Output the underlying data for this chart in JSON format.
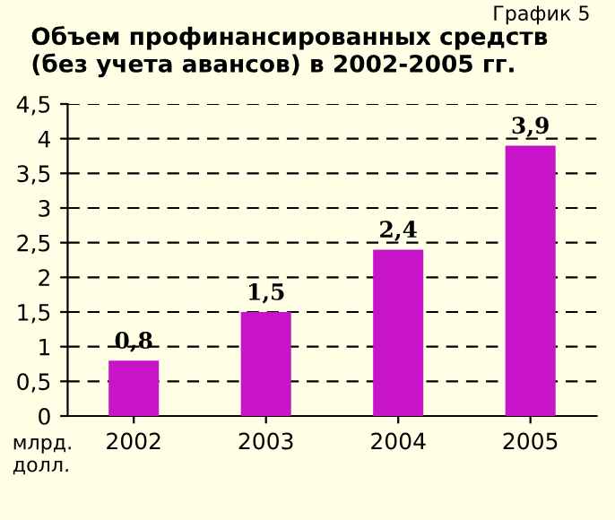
{
  "chart_data": {
    "type": "bar",
    "title": "Объем профинансированных средств\n(без учета авансов) в 2002-2005 гг.",
    "annotations": [
      "График 5",
      "млрд.\nдолл."
    ],
    "categories": [
      "2002",
      "2003",
      "2004",
      "2005"
    ],
    "values": [
      0.8,
      1.5,
      2.4,
      3.9
    ],
    "value_labels": [
      "0,8",
      "1,5",
      "2,4",
      "3,9"
    ],
    "color": "#c814c8",
    "ylim": [
      0,
      4.5
    ],
    "yticks": [
      0,
      {
        "value": 0.5,
        "label": "0,5"
      },
      1,
      {
        "value": 1.5,
        "label": "1,5"
      },
      2,
      {
        "value": 2.5,
        "label": "2,5"
      },
      3,
      {
        "value": 3.5,
        "label": "3,5"
      },
      4,
      {
        "value": 4.5,
        "label": "4,5"
      }
    ],
    "grid": "y",
    "line_style": "dashed"
  }
}
